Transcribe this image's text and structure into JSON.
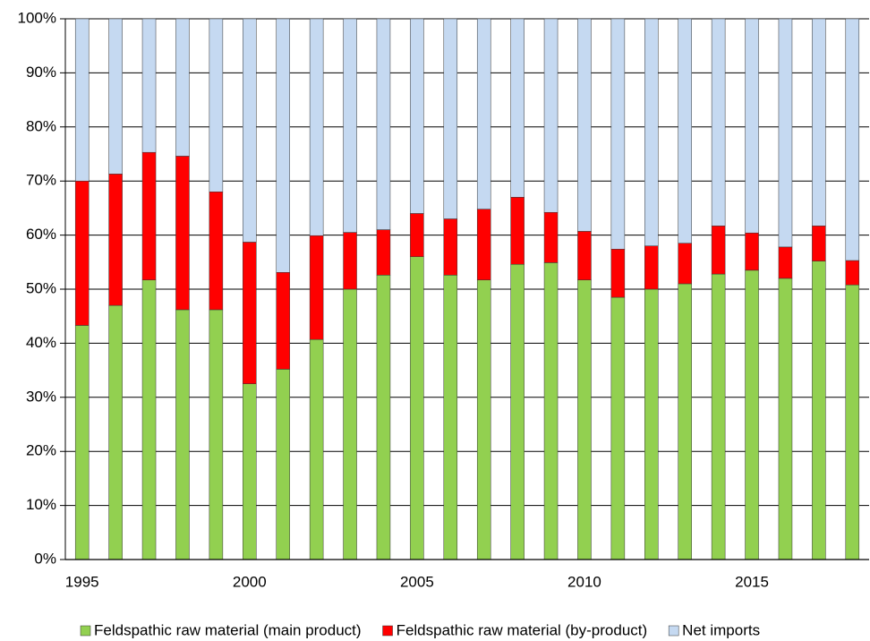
{
  "chart_data": {
    "type": "stacked_bar",
    "categories": [
      "1995",
      null,
      null,
      null,
      null,
      "2000",
      null,
      null,
      null,
      null,
      "2005",
      null,
      null,
      null,
      null,
      "2010",
      null,
      null,
      null,
      null,
      "2015",
      null,
      null,
      null
    ],
    "series": [
      {
        "name": "Feldspathic raw material (main product)",
        "color": "#92d050",
        "values": [
          43.3,
          47,
          51.7,
          46.2,
          46.2,
          32.5,
          35.2,
          40.7,
          50,
          52.6,
          56,
          52.6,
          51.7,
          54.6,
          54.9,
          51.7,
          48.5,
          50,
          51,
          52.8,
          53.5,
          52,
          55.2,
          50.8
        ]
      },
      {
        "name": "Feldspathic raw material (by-product)",
        "color": "#ff0000",
        "values": [
          26.7,
          24.3,
          23.6,
          28.4,
          21.8,
          26.2,
          17.9,
          19.2,
          10.5,
          8.4,
          8,
          10.4,
          13.1,
          12.4,
          9.3,
          9,
          8.9,
          8,
          7.5,
          8.9,
          6.9,
          5.8,
          6.5,
          4.5
        ]
      },
      {
        "name": "Net imports",
        "color": "#c5d9f1",
        "values": [
          30,
          28.7,
          24.7,
          25.4,
          32,
          41.3,
          46.9,
          40.1,
          39.5,
          39,
          36,
          37,
          35.2,
          33,
          35.8,
          39.3,
          42.6,
          42,
          41.5,
          38.3,
          39.6,
          42.2,
          38.3,
          44.7
        ]
      }
    ],
    "ylim": [
      0,
      100
    ],
    "yticks": [
      {
        "value": 0,
        "label": "0%"
      },
      {
        "value": 10,
        "label": "10%"
      },
      {
        "value": 20,
        "label": "20%"
      },
      {
        "value": 30,
        "label": "30%"
      },
      {
        "value": 40,
        "label": "40%"
      },
      {
        "value": 50,
        "label": "50%"
      },
      {
        "value": 60,
        "label": "60%"
      },
      {
        "value": 70,
        "label": "70%"
      },
      {
        "value": 80,
        "label": "80%"
      },
      {
        "value": 90,
        "label": "90%"
      },
      {
        "value": 100,
        "label": "100%"
      }
    ],
    "grid": true,
    "legend": "bottom"
  }
}
